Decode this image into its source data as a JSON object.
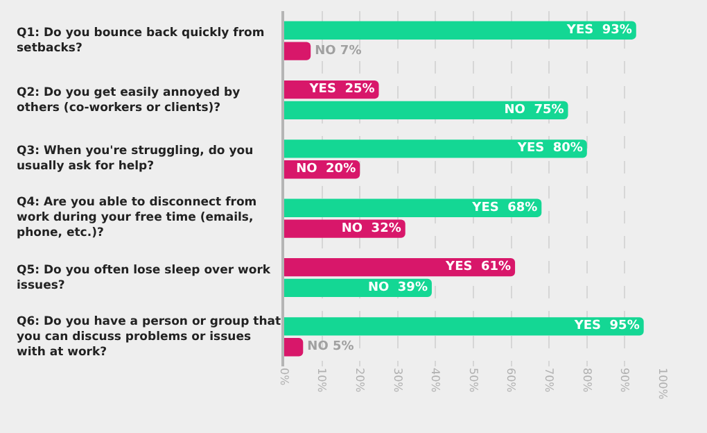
{
  "chart_data": {
    "type": "bar",
    "orientation": "horizontal",
    "categories": [
      "Q1: Do you bounce back quickly from setbacks?",
      "Q2: Do you get easily annoyed by others (co-workers or clients)?",
      "Q3: When you're struggling, do you usually ask for help?",
      "Q4: Are you able to disconnect from work during your free time (emails, phone, etc.)?",
      "Q5: Do you often lose sleep over work issues?",
      "Q6: Do you have a person or group that you can discuss problems or issues with at work?"
    ],
    "series": [
      {
        "values": [
          93,
          25,
          80,
          68,
          61,
          95
        ],
        "colors": [
          "#14d794",
          "#d8176a",
          "#14d794",
          "#14d794",
          "#d8176a",
          "#14d794"
        ],
        "value_labels": [
          "YES  93%",
          "YES  25%",
          "YES  80%",
          "YES  68%",
          "YES  61%",
          "YES  95%"
        ]
      },
      {
        "values": [
          7,
          75,
          20,
          32,
          39,
          5
        ],
        "colors": [
          "#d8176a",
          "#14d794",
          "#d8176a",
          "#d8176a",
          "#14d794",
          "#d8176a"
        ],
        "value_labels": [
          "NO 7%",
          "NO  75%",
          "NO  20%",
          "NO  32%",
          "NO  39%",
          "NO 5%"
        ]
      }
    ],
    "xlim": [
      0,
      100
    ],
    "xticks": [
      {
        "value": 0,
        "label": "0%"
      },
      {
        "value": 10,
        "label": "10%"
      },
      {
        "value": 20,
        "label": "20%"
      },
      {
        "value": 30,
        "label": "30%"
      },
      {
        "value": 40,
        "label": "40%"
      },
      {
        "value": 50,
        "label": "50%"
      },
      {
        "value": 60,
        "label": "60%"
      },
      {
        "value": 70,
        "label": "70%"
      },
      {
        "value": 80,
        "label": "80%"
      },
      {
        "value": 90,
        "label": "90%"
      },
      {
        "value": 100,
        "label": "100%"
      }
    ],
    "grid": "x",
    "legend": false
  }
}
